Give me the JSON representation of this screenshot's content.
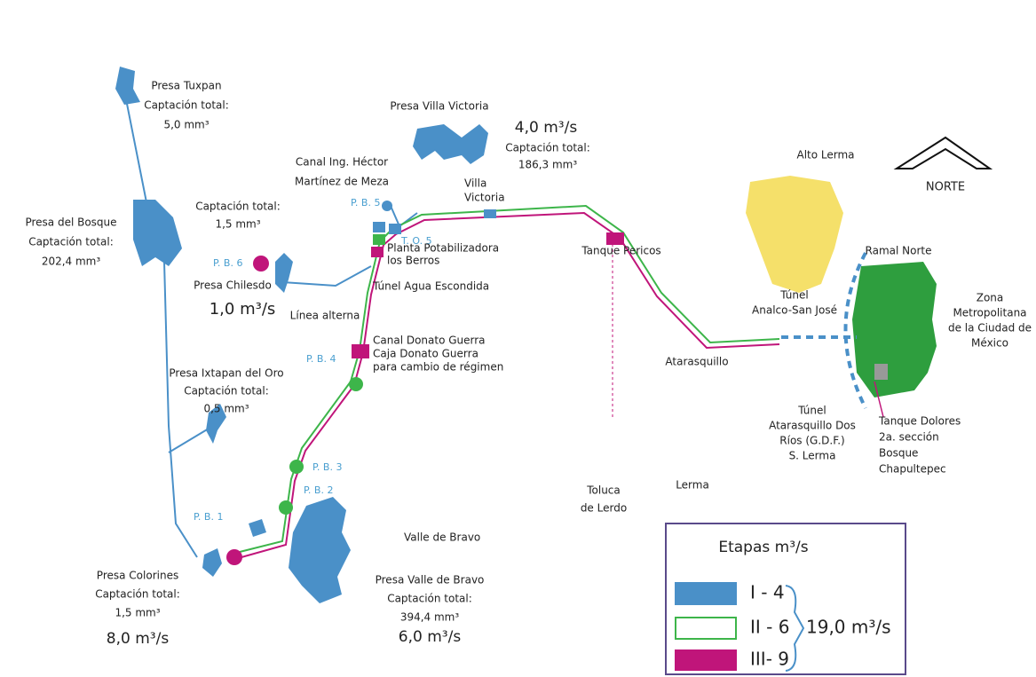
{
  "labels": [
    {
      "lines": [
        "Presa Tuxpan",
        "Captación total:",
        "5,0 mm³"
      ]
    },
    {
      "lines": [
        "Presa Villa Victoria"
      ]
    },
    {
      "lines": [
        "4,0 m³/s"
      ]
    },
    {
      "lines": [
        "Captación total:",
        "186,3 mm³"
      ]
    },
    {
      "lines": [
        "Canal Ing. Héctor",
        "Martínez de Meza"
      ]
    },
    {
      "lines": [
        "Villa",
        "Victoria"
      ]
    },
    {
      "lines": [
        "Alto Lerma"
      ]
    },
    {
      "lines": [
        "NORTE"
      ]
    },
    {
      "lines": [
        "Presa del Bosque",
        "Captación total:",
        "202,4 mm³"
      ]
    },
    {
      "lines": [
        "Captación total:",
        "1,5 mm³"
      ]
    },
    {
      "lines": [
        "P. B. 6"
      ]
    },
    {
      "lines": [
        "Presa Chilesdo"
      ]
    },
    {
      "lines": [
        "1,0 m³/s"
      ]
    },
    {
      "lines": [
        "P. B. 5"
      ]
    },
    {
      "lines": [
        "T. O. 5"
      ]
    },
    {
      "lines": [
        "Planta Potabilizadora",
        "los Berros"
      ]
    },
    {
      "lines": [
        "Túnel Agua Escondida"
      ]
    },
    {
      "lines": [
        "Línea alterna"
      ]
    },
    {
      "lines": [
        "Tanque Pericos"
      ]
    },
    {
      "lines": [
        "Ramal Norte"
      ]
    },
    {
      "lines": [
        "Zona",
        "Metropolitana",
        "de la Ciudad de",
        "México"
      ]
    },
    {
      "lines": [
        "Túnel",
        "Analco-San José"
      ]
    },
    {
      "lines": [
        "Canal Donato Guerra",
        "Caja Donato Guerra",
        "para cambio de régimen"
      ]
    },
    {
      "lines": [
        "Atarasquillo"
      ]
    },
    {
      "lines": [
        "P. B. 4"
      ]
    },
    {
      "lines": [
        "Presa Ixtapan del Oro",
        "Captación total:",
        "0,5 mm³"
      ]
    },
    {
      "lines": [
        "Túnel",
        "Atarasquillo Dos",
        "Ríos (G.D.F.)",
        "S. Lerma"
      ]
    },
    {
      "lines": [
        "Tanque Dolores",
        "2a. sección",
        "Bosque",
        "Chapultepec"
      ]
    },
    {
      "lines": [
        "Toluca",
        "de Lerdo"
      ]
    },
    {
      "lines": [
        "Lerma"
      ]
    },
    {
      "lines": [
        "P. B. 3"
      ]
    },
    {
      "lines": [
        "P. B. 2"
      ]
    },
    {
      "lines": [
        "P. B. 1"
      ]
    },
    {
      "lines": [
        "Valle de Bravo"
      ]
    },
    {
      "lines": [
        "Presa Valle de Bravo",
        "Captación total:",
        "394,4 mm³"
      ]
    },
    {
      "lines": [
        "6,0 m³/s"
      ]
    },
    {
      "lines": [
        "Presa Colorines",
        "Captación total:",
        "1,5 mm³"
      ]
    },
    {
      "lines": [
        "8,0 m³/s"
      ]
    }
  ],
  "legend": {
    "title": "Etapas m³/s",
    "items": [
      "I - 4",
      "II - 6",
      "III- 9"
    ],
    "total": "19,0 m³/s"
  }
}
